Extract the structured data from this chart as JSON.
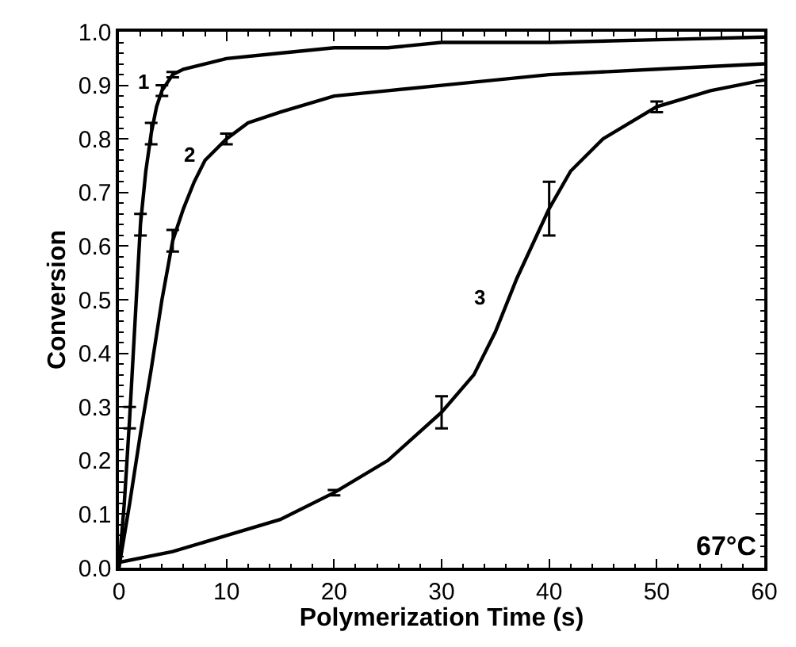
{
  "chart_data": {
    "type": "line",
    "xlabel": "Polymerization Time (s)",
    "ylabel": "Conversion",
    "xlim": [
      0,
      60
    ],
    "xticks": [
      0,
      10,
      20,
      30,
      40,
      50,
      60
    ],
    "ylim": [
      0,
      1.0
    ],
    "yticks": [
      {
        "value": 0,
        "label": "0.0"
      },
      0.1,
      0.2,
      0.3,
      0.4,
      0.5,
      0.6,
      0.7,
      0.8,
      0.9,
      {
        "value": 1.0,
        "label": "1.0"
      }
    ],
    "legend": false,
    "marker": "none",
    "line_style": "solid",
    "series": [
      {
        "name": "1",
        "color": "#000000",
        "x": [
          0,
          0.5,
          1,
          1.5,
          2,
          2.5,
          3,
          3.5,
          4,
          5,
          6,
          8,
          10,
          15,
          20,
          25,
          30,
          40,
          50,
          60
        ],
        "values": [
          0,
          0.12,
          0.28,
          0.46,
          0.64,
          0.74,
          0.81,
          0.86,
          0.89,
          0.92,
          0.93,
          0.94,
          0.95,
          0.96,
          0.97,
          0.97,
          0.98,
          0.98,
          0.985,
          0.99
        ],
        "errors": [
          null,
          null,
          0.02,
          null,
          0.02,
          null,
          0.02,
          null,
          0.01,
          0.005,
          null,
          null,
          null,
          null,
          null,
          null,
          null,
          null,
          null,
          null
        ]
      },
      {
        "name": "2",
        "color": "#000000",
        "x": [
          0,
          1,
          2,
          3,
          4,
          5,
          6,
          7,
          8,
          10,
          12,
          15,
          20,
          25,
          30,
          40,
          50,
          60
        ],
        "values": [
          0,
          0.12,
          0.25,
          0.37,
          0.5,
          0.61,
          0.67,
          0.72,
          0.76,
          0.8,
          0.83,
          0.85,
          0.88,
          0.89,
          0.9,
          0.92,
          0.93,
          0.94
        ],
        "errors": [
          null,
          null,
          null,
          null,
          null,
          0.02,
          null,
          null,
          null,
          0.01,
          null,
          null,
          null,
          null,
          null,
          null,
          null,
          null
        ]
      },
      {
        "name": "3",
        "color": "#000000",
        "x": [
          0,
          5,
          10,
          15,
          20,
          25,
          30,
          33,
          35,
          37,
          40,
          42,
          45,
          50,
          55,
          60
        ],
        "values": [
          0.01,
          0.03,
          0.06,
          0.09,
          0.14,
          0.2,
          0.29,
          0.36,
          0.44,
          0.54,
          0.67,
          0.74,
          0.8,
          0.86,
          0.89,
          0.91
        ],
        "errors": [
          null,
          null,
          null,
          null,
          0.005,
          null,
          0.03,
          null,
          null,
          null,
          0.05,
          null,
          null,
          0.01,
          null,
          null
        ]
      }
    ],
    "annotations": [
      "67°C"
    ]
  }
}
